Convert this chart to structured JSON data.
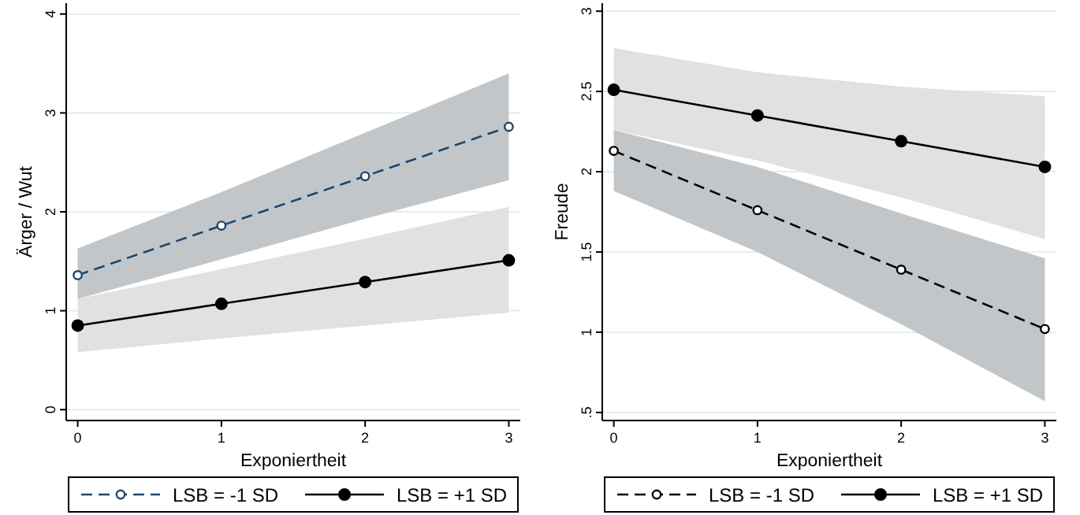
{
  "chart_data": [
    {
      "type": "line",
      "xlabel": "Exponiertheit",
      "ylabel": "Ärger / Wut",
      "x": [
        0,
        1,
        2,
        3
      ],
      "xlim": [
        -0.08,
        3.08
      ],
      "xticks": [
        0,
        1,
        2,
        3
      ],
      "ylim": [
        -0.11,
        4.11
      ],
      "yticks": [
        0,
        1,
        2,
        3,
        4
      ],
      "grid": "y",
      "legend": "bottom",
      "marker": "circle",
      "series": [
        {
          "name": "LSB = -1 SD",
          "color": "#1a476f",
          "line_style": "dashed",
          "values": [
            1.36,
            1.86,
            2.36,
            2.86
          ],
          "lower": [
            1.12,
            1.52,
            1.93,
            2.32
          ],
          "upper": [
            1.63,
            2.2,
            2.8,
            3.4
          ]
        },
        {
          "name": "LSB = +1 SD",
          "color": "#000000",
          "line_style": "solid",
          "values": [
            0.85,
            1.07,
            1.29,
            1.51
          ],
          "lower": [
            0.58,
            0.72,
            0.85,
            0.98
          ],
          "upper": [
            1.12,
            1.42,
            1.73,
            2.05
          ]
        }
      ]
    },
    {
      "type": "line",
      "xlabel": "Exponiertheit",
      "ylabel": "Freude",
      "x": [
        0,
        1,
        2,
        3
      ],
      "xlim": [
        -0.08,
        3.08
      ],
      "xticks": [
        0,
        1,
        2,
        3
      ],
      "ylim": [
        0.45,
        3.05
      ],
      "yticks": [
        {
          "value": 0.5,
          "label": ".5"
        },
        1,
        1.5,
        2,
        2.5,
        3
      ],
      "grid": "y",
      "legend": "bottom",
      "marker": "circle",
      "series": [
        {
          "name": "LSB = -1 SD",
          "color": "#000000",
          "line_style": "dashed",
          "values": [
            2.13,
            1.76,
            1.39,
            1.02
          ],
          "lower": [
            1.88,
            1.5,
            1.05,
            0.57
          ],
          "upper": [
            2.26,
            2.03,
            1.74,
            1.46
          ]
        },
        {
          "name": "LSB = +1 SD",
          "color": "#000000",
          "line_style": "solid",
          "values": [
            2.51,
            2.35,
            2.19,
            2.03
          ],
          "lower": [
            2.26,
            2.07,
            1.84,
            1.58
          ],
          "upper": [
            2.77,
            2.62,
            2.53,
            2.47
          ]
        }
      ]
    }
  ]
}
